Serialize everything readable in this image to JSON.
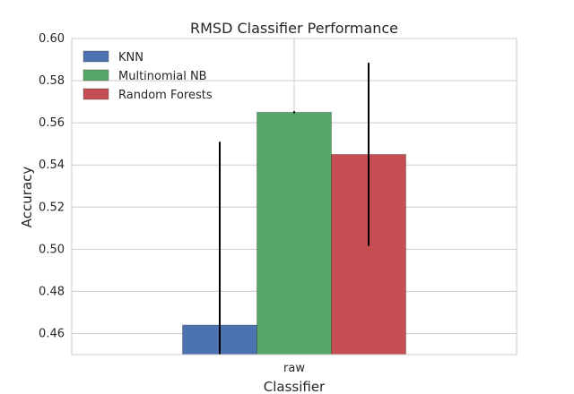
{
  "chart_data": {
    "type": "bar",
    "title": "RMSD Classifier Performance",
    "xlabel": "Classifier",
    "ylabel": "Accuracy",
    "categories": [
      "raw"
    ],
    "ylim": [
      0.45,
      0.6
    ],
    "yticks": [
      0.46,
      0.48,
      0.5,
      0.52,
      0.54,
      0.56,
      0.58,
      0.6
    ],
    "ytick_labels": [
      "0.46",
      "0.48",
      "0.50",
      "0.52",
      "0.54",
      "0.56",
      "0.58",
      "0.60"
    ],
    "grid": true,
    "legend_position": "top-left",
    "series": [
      {
        "name": "KNN",
        "color": "#4c72b0",
        "values": [
          0.464
        ],
        "error": [
          0.087
        ]
      },
      {
        "name": "Multinomial NB",
        "color": "#55a868",
        "values": [
          0.565
        ],
        "error": [
          0.0005
        ]
      },
      {
        "name": "Random Forests",
        "color": "#c44e52",
        "values": [
          0.545
        ],
        "error": [
          0.0435
        ]
      }
    ]
  }
}
